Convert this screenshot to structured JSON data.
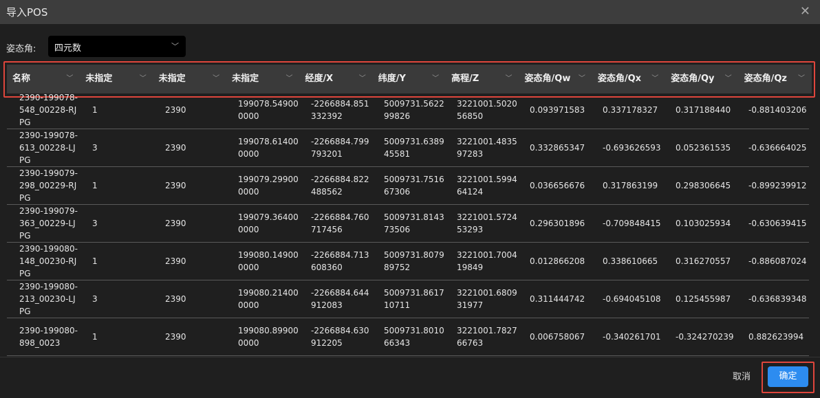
{
  "dialog": {
    "title": "导入POS",
    "close_icon": "close-icon"
  },
  "attitude": {
    "label": "姿态角:",
    "selected": "四元数"
  },
  "table": {
    "headers": [
      "名称",
      "未指定",
      "未指定",
      "未指定",
      "经度/X",
      "纬度/Y",
      "高程/Z",
      "姿态角/Qw",
      "姿态角/Qx",
      "姿态角/Qy",
      "姿态角/Qz"
    ],
    "rows": [
      [
        "2390-199078-548_00228-RJPG",
        "1",
        "2390",
        "199078.549000000",
        "-2266884.851332392",
        "5009731.562299826",
        "3221001.502056850",
        "0.093971583",
        "0.337178327",
        "0.317188440",
        "-0.881403206"
      ],
      [
        "2390-199078-613_00228-LJPG",
        "3",
        "2390",
        "199078.614000000",
        "-2266884.799793201",
        "5009731.638945581",
        "3221001.483597283",
        "0.332865347",
        "-0.693626593",
        "0.052361535",
        "-0.636664025"
      ],
      [
        "2390-199079-298_00229-RJPG",
        "1",
        "2390",
        "199079.299000000",
        "-2266884.822488562",
        "5009731.751667306",
        "3221001.599464124",
        "0.036656676",
        "0.317863199",
        "0.298306645",
        "-0.899239912"
      ],
      [
        "2390-199079-363_00229-LJPG",
        "3",
        "2390",
        "199079.364000000",
        "-2266884.760717456",
        "5009731.814373506",
        "3221001.572453293",
        "0.296301896",
        "-0.709848415",
        "0.103025934",
        "-0.630639415"
      ],
      [
        "2390-199080-148_00230-RJPG",
        "1",
        "2390",
        "199080.149000000",
        "-2266884.713608360",
        "5009731.807989752",
        "3221001.700419849",
        "0.012866208",
        "0.338610665",
        "0.316270557",
        "-0.886087024"
      ],
      [
        "2390-199080-213_00230-LJPG",
        "3",
        "2390",
        "199080.214000000",
        "-2266884.644912083",
        "5009731.861710711",
        "3221001.680931977",
        "0.311444742",
        "-0.694045108",
        "0.125455987",
        "-0.636839348"
      ],
      [
        "2390-199080-898_0023",
        "1",
        "2390",
        "199080.899000000",
        "-2266884.630912205",
        "5009731.801066343",
        "3221001.782766763",
        "0.006758067",
        "-0.340261701",
        "-0.324270239",
        "0.882623994"
      ]
    ]
  },
  "footer": {
    "cancel": "取消",
    "confirm": "确定"
  },
  "colors": {
    "accent": "#2d8cf0",
    "highlight": "#e0463c"
  }
}
